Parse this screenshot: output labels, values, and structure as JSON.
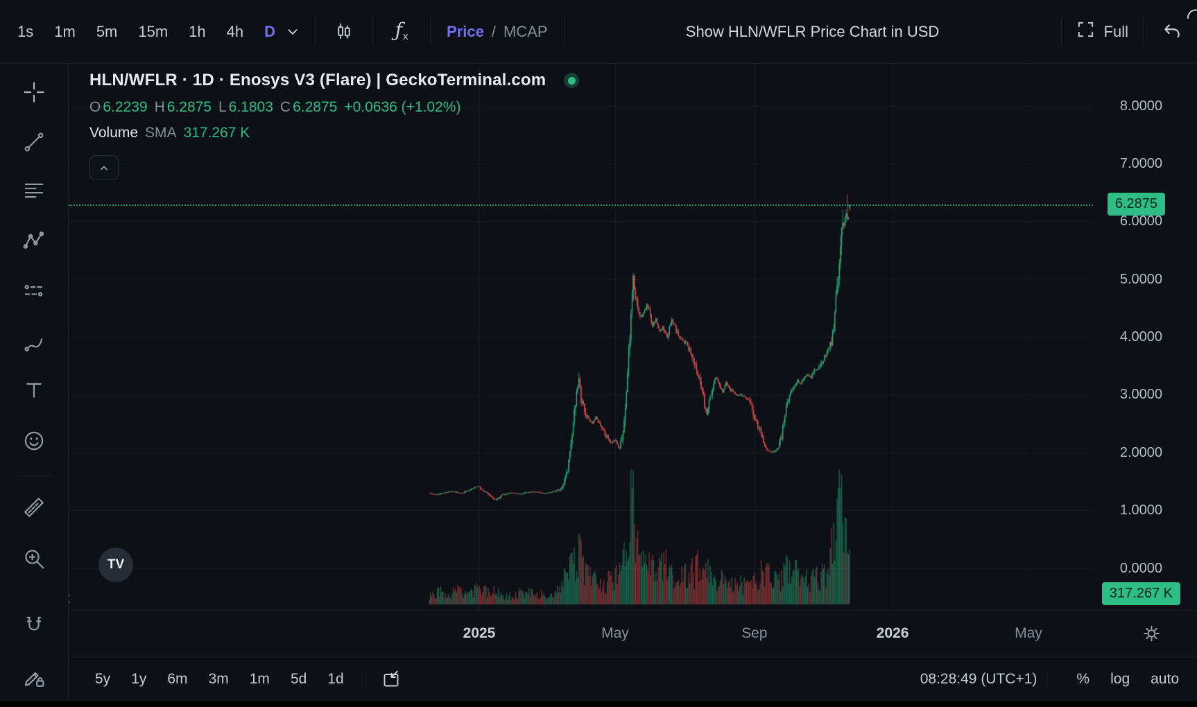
{
  "colors": {
    "bg": "#0d1017",
    "accent": "#7270f2",
    "green": "#2ebd85",
    "red": "#ef5350",
    "badge_text": "#0a241b"
  },
  "icons": {
    "fx_f": "ƒ",
    "fx_x": "x",
    "collapse_left": "‹",
    "tv_logo": "TV"
  },
  "topbar": {
    "timeframes": [
      "1s",
      "1m",
      "5m",
      "15m",
      "1h",
      "4h",
      "D"
    ],
    "active_timeframe": "D",
    "price_label": "Price",
    "slash": "/",
    "mcap_label": "MCAP",
    "usd_button": "Show HLN/WFLR Price Chart in USD",
    "full_label": "Full"
  },
  "sidebar": {
    "tools": [
      "crosshair",
      "trend-line",
      "fib-lines",
      "xabcd-pattern",
      "forecast",
      "brush",
      "text",
      "emoji",
      "ruler",
      "zoom-in",
      "magnet",
      "pencil-lock"
    ],
    "active_tool": "crosshair"
  },
  "legend": {
    "title": "HLN/WFLR · 1D · Enosys V3 (Flare) | GeckoTerminal.com",
    "ohlc": {
      "o_label": "O",
      "o": "6.2239",
      "h_label": "H",
      "h": "6.2875",
      "l_label": "L",
      "l": "6.1803",
      "c_label": "C",
      "c": "6.2875",
      "change": "+0.0636 (+1.02%)"
    },
    "volume_row": {
      "label": "Volume",
      "sma_label": "SMA",
      "value": "317.267 K"
    }
  },
  "price_axis": {
    "ticks": [
      "8.0000",
      "7.0000",
      "6.0000",
      "5.0000",
      "4.0000",
      "3.0000",
      "2.0000",
      "1.0000",
      "0.0000"
    ],
    "current_price": "6.2875"
  },
  "volume_axis": {
    "current": "317.267 K"
  },
  "bottombar": {
    "ranges": [
      "5y",
      "1y",
      "6m",
      "3m",
      "1m",
      "5d",
      "1d"
    ],
    "clock": "08:28:49 (UTC+1)",
    "percent": "%",
    "log": "log",
    "auto": "auto"
  },
  "chart_data": {
    "type": "candlestick",
    "symbol": "HLN/WFLR",
    "interval": "1D",
    "venue": "Enosys V3 (Flare) | GeckoTerminal.com",
    "current_price": 6.2875,
    "last_candle": {
      "open": 6.2239,
      "high": 6.2875,
      "low": 6.1803,
      "close": 6.2875,
      "change": "+0.0636",
      "change_pct": "+1.02%"
    },
    "volume_sma": "317.267 K",
    "ylim": [
      0,
      8.7
    ],
    "y_ticks": [
      8,
      7,
      6,
      5,
      4,
      3,
      2,
      1,
      0
    ],
    "x_labels": [
      {
        "label": "2025",
        "day": 0,
        "bold": true
      },
      {
        "label": "May",
        "day": 120,
        "bold": false
      },
      {
        "label": "Sep",
        "day": 243,
        "bold": false
      },
      {
        "label": "2026",
        "day": 365,
        "bold": true
      },
      {
        "label": "May",
        "day": 485,
        "bold": false
      }
    ],
    "day_range": [
      -44,
      327
    ],
    "price_keyframes": [
      [
        -44,
        1.3
      ],
      [
        -38,
        1.27
      ],
      [
        -30,
        1.31
      ],
      [
        -24,
        1.33
      ],
      [
        -16,
        1.29
      ],
      [
        -8,
        1.36
      ],
      [
        -1,
        1.42
      ],
      [
        6,
        1.3
      ],
      [
        12,
        1.21
      ],
      [
        15,
        1.18
      ],
      [
        20,
        1.26
      ],
      [
        28,
        1.3
      ],
      [
        36,
        1.28
      ],
      [
        42,
        1.31
      ],
      [
        49,
        1.32
      ],
      [
        58,
        1.29
      ],
      [
        66,
        1.33
      ],
      [
        73,
        1.37
      ],
      [
        78,
        1.72
      ],
      [
        81,
        2.2
      ],
      [
        85,
        2.85
      ],
      [
        88,
        3.28
      ],
      [
        90,
        2.92
      ],
      [
        95,
        2.6
      ],
      [
        100,
        2.5
      ],
      [
        103,
        2.62
      ],
      [
        107,
        2.45
      ],
      [
        112,
        2.3
      ],
      [
        116,
        2.16
      ],
      [
        120,
        2.22
      ],
      [
        124,
        2.05
      ],
      [
        127,
        2.32
      ],
      [
        130,
        2.95
      ],
      [
        133,
        4.05
      ],
      [
        136,
        5.0
      ],
      [
        138,
        4.62
      ],
      [
        140,
        4.5
      ],
      [
        142,
        4.35
      ],
      [
        145,
        4.42
      ],
      [
        148,
        4.55
      ],
      [
        150,
        4.45
      ],
      [
        153,
        4.2
      ],
      [
        156,
        4.3
      ],
      [
        159,
        4.1
      ],
      [
        162,
        4.16
      ],
      [
        166,
        4.0
      ],
      [
        170,
        4.3
      ],
      [
        174,
        4.1
      ],
      [
        178,
        3.95
      ],
      [
        182,
        3.9
      ],
      [
        184,
        3.85
      ],
      [
        187,
        3.7
      ],
      [
        190,
        3.55
      ],
      [
        193,
        3.35
      ],
      [
        196,
        3.15
      ],
      [
        199,
        2.82
      ],
      [
        201,
        2.64
      ],
      [
        204,
        3.0
      ],
      [
        207,
        3.2
      ],
      [
        209,
        3.3
      ],
      [
        212,
        3.16
      ],
      [
        215,
        3.05
      ],
      [
        218,
        3.2
      ],
      [
        221,
        3.1
      ],
      [
        224,
        3.06
      ],
      [
        228,
        3.0
      ],
      [
        231,
        3.0
      ],
      [
        235,
        2.95
      ],
      [
        239,
        2.9
      ],
      [
        242,
        2.7
      ],
      [
        245,
        2.5
      ],
      [
        248,
        2.35
      ],
      [
        251,
        2.16
      ],
      [
        254,
        2.05
      ],
      [
        258,
        2.0
      ],
      [
        261,
        2.04
      ],
      [
        264,
        2.1
      ],
      [
        267,
        2.3
      ],
      [
        270,
        2.6
      ],
      [
        272,
        2.9
      ],
      [
        275,
        3.05
      ],
      [
        278,
        3.15
      ],
      [
        281,
        3.25
      ],
      [
        284,
        3.2
      ],
      [
        287,
        3.3
      ],
      [
        290,
        3.35
      ],
      [
        293,
        3.3
      ],
      [
        295,
        3.4
      ],
      [
        298,
        3.45
      ],
      [
        301,
        3.5
      ],
      [
        304,
        3.6
      ],
      [
        306,
        3.7
      ],
      [
        309,
        3.8
      ],
      [
        312,
        3.95
      ],
      [
        314,
        4.4
      ],
      [
        316,
        4.9
      ],
      [
        318,
        5.4
      ],
      [
        320,
        5.9
      ],
      [
        322,
        6.0
      ],
      [
        324,
        6.1
      ],
      [
        326,
        6.05
      ],
      [
        327,
        6.2875
      ]
    ],
    "volume_keyframes": [
      [
        -44,
        0.07
      ],
      [
        -36,
        0.1
      ],
      [
        -28,
        0.07
      ],
      [
        -20,
        0.13
      ],
      [
        -12,
        0.08
      ],
      [
        -4,
        0.1
      ],
      [
        4,
        0.12
      ],
      [
        12,
        0.1
      ],
      [
        20,
        0.07
      ],
      [
        30,
        0.06
      ],
      [
        40,
        0.1
      ],
      [
        50,
        0.07
      ],
      [
        60,
        0.08
      ],
      [
        70,
        0.12
      ],
      [
        78,
        0.22
      ],
      [
        84,
        0.3
      ],
      [
        88,
        0.38
      ],
      [
        92,
        0.26
      ],
      [
        100,
        0.18
      ],
      [
        110,
        0.15
      ],
      [
        120,
        0.2
      ],
      [
        127,
        0.32
      ],
      [
        132,
        0.6
      ],
      [
        135,
        0.85
      ],
      [
        136,
        1.0
      ],
      [
        137,
        0.6
      ],
      [
        140,
        0.4
      ],
      [
        145,
        0.32
      ],
      [
        152,
        0.27
      ],
      [
        160,
        0.3
      ],
      [
        170,
        0.25
      ],
      [
        180,
        0.2
      ],
      [
        190,
        0.24
      ],
      [
        197,
        0.34
      ],
      [
        201,
        0.3
      ],
      [
        208,
        0.2
      ],
      [
        216,
        0.17
      ],
      [
        226,
        0.14
      ],
      [
        236,
        0.15
      ],
      [
        246,
        0.22
      ],
      [
        252,
        0.26
      ],
      [
        260,
        0.16
      ],
      [
        268,
        0.22
      ],
      [
        272,
        0.3
      ],
      [
        282,
        0.2
      ],
      [
        292,
        0.18
      ],
      [
        302,
        0.22
      ],
      [
        308,
        0.28
      ],
      [
        312,
        0.42
      ],
      [
        316,
        0.55
      ],
      [
        319,
        0.85
      ],
      [
        321,
        0.6
      ],
      [
        323,
        0.5
      ],
      [
        325,
        0.45
      ],
      [
        327,
        0.3
      ]
    ],
    "wick_overrides": [
      [
        88,
        3.38
      ],
      [
        136,
        5.08
      ],
      [
        321,
        6.2
      ],
      [
        325,
        6.47
      ]
    ]
  }
}
